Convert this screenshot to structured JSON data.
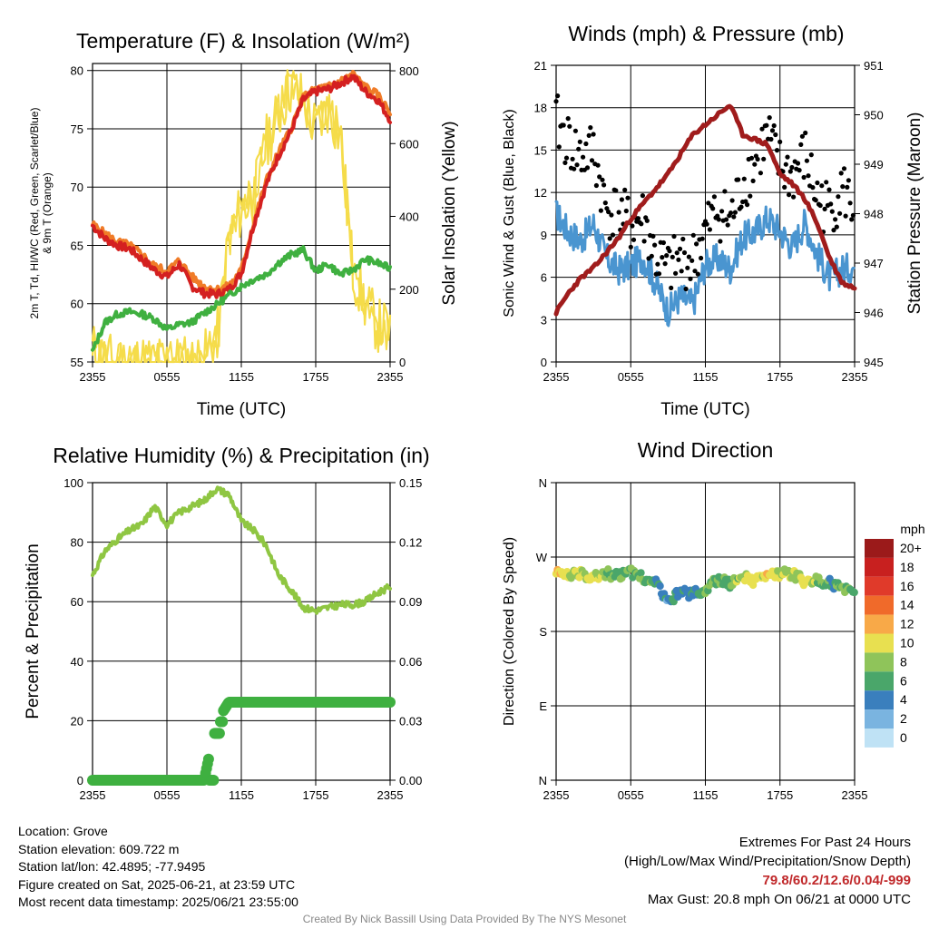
{
  "time_ticks": [
    "2355",
    "0555",
    "1155",
    "1755",
    "2355"
  ],
  "temp_panel": {
    "title": "Temperature (F) & Insolation (W/m²)",
    "ylabel_lines": [
      "2m T, T",
      "d",
      ", HI/WC (Red, Green, Scarlet/Blue)",
      "& 9m T (Orange)"
    ],
    "y2label": "Solar Insolation (Yellow)",
    "xlabel": "Time (UTC)",
    "yticks": [
      "80",
      "75",
      "70",
      "65",
      "60",
      "55"
    ],
    "y2ticks": [
      "800",
      "600",
      "400",
      "200",
      "0"
    ]
  },
  "wind_panel": {
    "title": "Winds (mph) & Pressure (mb)",
    "ylabel": "Sonic Wind & Gust (Blue, Black)",
    "y2label": "Station Pressure (Maroon)",
    "xlabel": "Time (UTC)",
    "yticks": [
      "21",
      "18",
      "15",
      "12",
      "9",
      "6",
      "3",
      "0"
    ],
    "y2ticks": [
      "951",
      "950",
      "949",
      "948",
      "947",
      "946",
      "945"
    ]
  },
  "rh_panel": {
    "title": "Relative Humidity (%) & Precipitation (in)",
    "ylabel": "Percent & Precipitation",
    "yticks": [
      "100",
      "80",
      "60",
      "40",
      "20",
      "0"
    ],
    "y2ticks": [
      "0.15",
      "0.12",
      "0.09",
      "0.06",
      "0.03",
      "0.00"
    ]
  },
  "dir_panel": {
    "title": "Wind Direction",
    "ylabel": "Direction (Colored By Speed)",
    "yticks": [
      "N",
      "W",
      "S",
      "E",
      "N"
    ],
    "legend_title": "mph",
    "legend_labels": [
      "20+",
      "18",
      "16",
      "14",
      "12",
      "10",
      "8",
      "6",
      "4",
      "2",
      "0"
    ],
    "legend_colors": [
      "#9b1a1a",
      "#c8201f",
      "#e03a2a",
      "#f06a2a",
      "#f8a948",
      "#e8e050",
      "#8fc45a",
      "#4aa66a",
      "#3a7fbd",
      "#7ab4e0",
      "#bfe2f5"
    ]
  },
  "chart_data": [
    {
      "type": "line",
      "title": "Temperature (F) & Insolation (W/m²)",
      "xlabel": "Time (UTC)",
      "ylabel": "2m T, Td, HI/WC (Red, Green, Scarlet/Blue) & 9m T (Orange)",
      "y2label": "Solar Insolation (Yellow)",
      "x_range": [
        "2355",
        "2355"
      ],
      "ylim": [
        55,
        80
      ],
      "y2lim": [
        0,
        800
      ],
      "x_hours": [
        0,
        1,
        2,
        3,
        4,
        5,
        6,
        7,
        8,
        9,
        10,
        11,
        12,
        13,
        14,
        15,
        16,
        17,
        18,
        19,
        20,
        21,
        22,
        23,
        24
      ],
      "series": [
        {
          "name": "2m T",
          "color": "#d42020",
          "axis": "left",
          "values": [
            66.7,
            65.6,
            65.0,
            64.7,
            63.8,
            62.9,
            62.3,
            63.4,
            61.5,
            60.9,
            60.8,
            61.2,
            62.6,
            66.8,
            70.2,
            72.7,
            74.8,
            77.5,
            78.2,
            78.4,
            78.9,
            79.5,
            78.2,
            77.5,
            75.8
          ]
        },
        {
          "name": "9m T",
          "color": "#f07c28",
          "axis": "left",
          "values": [
            66.8,
            66.0,
            65.3,
            65.0,
            64.2,
            63.2,
            62.8,
            63.7,
            62.3,
            61.5,
            61.2,
            61.5,
            62.9,
            67.0,
            70.5,
            73.0,
            75.0,
            77.7,
            78.4,
            78.6,
            79.1,
            79.7,
            78.6,
            77.9,
            76.4
          ]
        },
        {
          "name": "Td",
          "color": "#3fb040",
          "axis": "left",
          "values": [
            55.9,
            58.4,
            59.1,
            59.3,
            59.1,
            58.7,
            57.8,
            58.2,
            58.4,
            59.2,
            59.9,
            60.7,
            61.5,
            62.1,
            62.5,
            63.5,
            64.2,
            64.6,
            62.8,
            63.4,
            62.5,
            62.9,
            63.8,
            63.5,
            63.0
          ]
        },
        {
          "name": "Solar Insolation",
          "color": "#f5dc4a",
          "axis": "right",
          "values": [
            35,
            5,
            0,
            0,
            0,
            0,
            0,
            0,
            0,
            10,
            50,
            340,
            420,
            450,
            600,
            680,
            760,
            720,
            640,
            700,
            620,
            250,
            160,
            100,
            90
          ]
        }
      ]
    },
    {
      "type": "line",
      "title": "Winds (mph) & Pressure (mb)",
      "xlabel": "Time (UTC)",
      "ylabel": "Sonic Wind & Gust (Blue, Black)",
      "y2label": "Station Pressure (Maroon)",
      "ylim": [
        0,
        21
      ],
      "y2lim": [
        945,
        951
      ],
      "x_hours": [
        0,
        1,
        2,
        3,
        4,
        5,
        6,
        7,
        8,
        9,
        10,
        11,
        12,
        13,
        14,
        15,
        16,
        17,
        18,
        19,
        20,
        21,
        22,
        23,
        24
      ],
      "series": [
        {
          "name": "Sonic Wind",
          "color": "#4a95d0",
          "axis": "left",
          "values": [
            10.5,
            9.2,
            8.6,
            9.8,
            7.4,
            6.5,
            6.8,
            7.4,
            5.6,
            3.6,
            4.6,
            4.1,
            6.9,
            7.3,
            6.6,
            8.8,
            9.2,
            10.2,
            9.3,
            8.1,
            9.9,
            7.6,
            5.9,
            6.6,
            6.7
          ]
        },
        {
          "name": "Gust",
          "color": "#000000",
          "axis": "left",
          "values": [
            17.0,
            15.5,
            14.5,
            15.0,
            10.8,
            10.5,
            9.7,
            10.2,
            7.4,
            6.5,
            7.2,
            7.2,
            9.2,
            10.8,
            10.0,
            12.6,
            14.2,
            16.0,
            13.8,
            13.2,
            14.6,
            11.6,
            10.7,
            12.3,
            10.8
          ]
        },
        {
          "name": "Station Pressure",
          "color": "#a01c1c",
          "axis": "right",
          "values": [
            946.0,
            946.4,
            946.7,
            946.9,
            947.2,
            947.5,
            947.9,
            948.2,
            948.5,
            948.8,
            949.2,
            949.6,
            949.8,
            950.0,
            950.2,
            949.6,
            949.5,
            949.4,
            948.8,
            948.6,
            948.3,
            947.8,
            947.1,
            946.6,
            946.5
          ]
        }
      ]
    },
    {
      "type": "line",
      "title": "Relative Humidity (%) & Precipitation (in)",
      "ylabel": "Percent & Precipitation",
      "ylim": [
        0,
        100
      ],
      "y2lim": [
        0,
        0.15
      ],
      "x_hours": [
        0,
        1,
        2,
        3,
        4,
        5,
        6,
        7,
        8,
        9,
        10,
        11,
        12,
        13,
        14,
        15,
        16,
        17,
        18,
        19,
        20,
        21,
        22,
        23,
        24
      ],
      "series": [
        {
          "name": "Relative Humidity",
          "color": "#8fc642",
          "axis": "left",
          "values": [
            69,
            77,
            81,
            84,
            86,
            92,
            86,
            90,
            92,
            94,
            98,
            96,
            87,
            84,
            79,
            69,
            64,
            58,
            57,
            58,
            59,
            59,
            60,
            63,
            65
          ]
        },
        {
          "name": "Precipitation",
          "color": "#3fb040",
          "axis": "right",
          "values": [
            0,
            0,
            0,
            0,
            0,
            0,
            0,
            0,
            0,
            0.0,
            0.03,
            0.04,
            0.04,
            0.04,
            0.04,
            0.04,
            0.04,
            0.04,
            0.04,
            0.04,
            0.04,
            0.04,
            0.04,
            0.04,
            0.04
          ]
        }
      ]
    },
    {
      "type": "scatter",
      "title": "Wind Direction",
      "ylabel": "Direction (Colored By Speed)",
      "ylim": [
        0,
        360
      ],
      "y_ticks": [
        "N",
        "W",
        "S",
        "E",
        "N"
      ],
      "x_hours": [
        0,
        1,
        2,
        3,
        4,
        5,
        6,
        7,
        8,
        9,
        10,
        11,
        12,
        13,
        14,
        15,
        16,
        17,
        18,
        19,
        20,
        21,
        22,
        23,
        24
      ],
      "series": [
        {
          "name": "Direction",
          "values": [
            250,
            248,
            249,
            247,
            250,
            248,
            251,
            246,
            238,
            215,
            228,
            225,
            232,
            242,
            238,
            247,
            241,
            245,
            250,
            249,
            240,
            241,
            238,
            233,
            232
          ]
        },
        {
          "name": "Speed",
          "values": [
            10.5,
            9.2,
            8.6,
            9.8,
            7.4,
            6.5,
            6.8,
            7.4,
            5.6,
            3.6,
            4.6,
            4.1,
            6.9,
            7.3,
            6.6,
            8.8,
            9.2,
            10.2,
            9.3,
            8.1,
            9.9,
            7.6,
            5.9,
            6.6,
            6.7
          ]
        }
      ]
    }
  ],
  "footer_left": [
    "Location: Grove",
    "Station elevation: 609.722 m",
    "Station lat/lon: 42.4895; -77.9495",
    "Figure created on Sat, 2025-06-21, at 23:59 UTC",
    "Most recent data timestamp: 2025/06/21 23:55:00"
  ],
  "footer_right": {
    "line1": "Extremes For Past 24 Hours",
    "line2": "(High/Low/Max Wind/Precipitation/Snow Depth)",
    "extremes": "79.8/60.2/12.6/0.04/-999",
    "gust": "Max Gust: 20.8 mph On 06/21 at 0000 UTC"
  },
  "credit": "Created By Nick Bassill Using Data Provided By The NYS Mesonet"
}
